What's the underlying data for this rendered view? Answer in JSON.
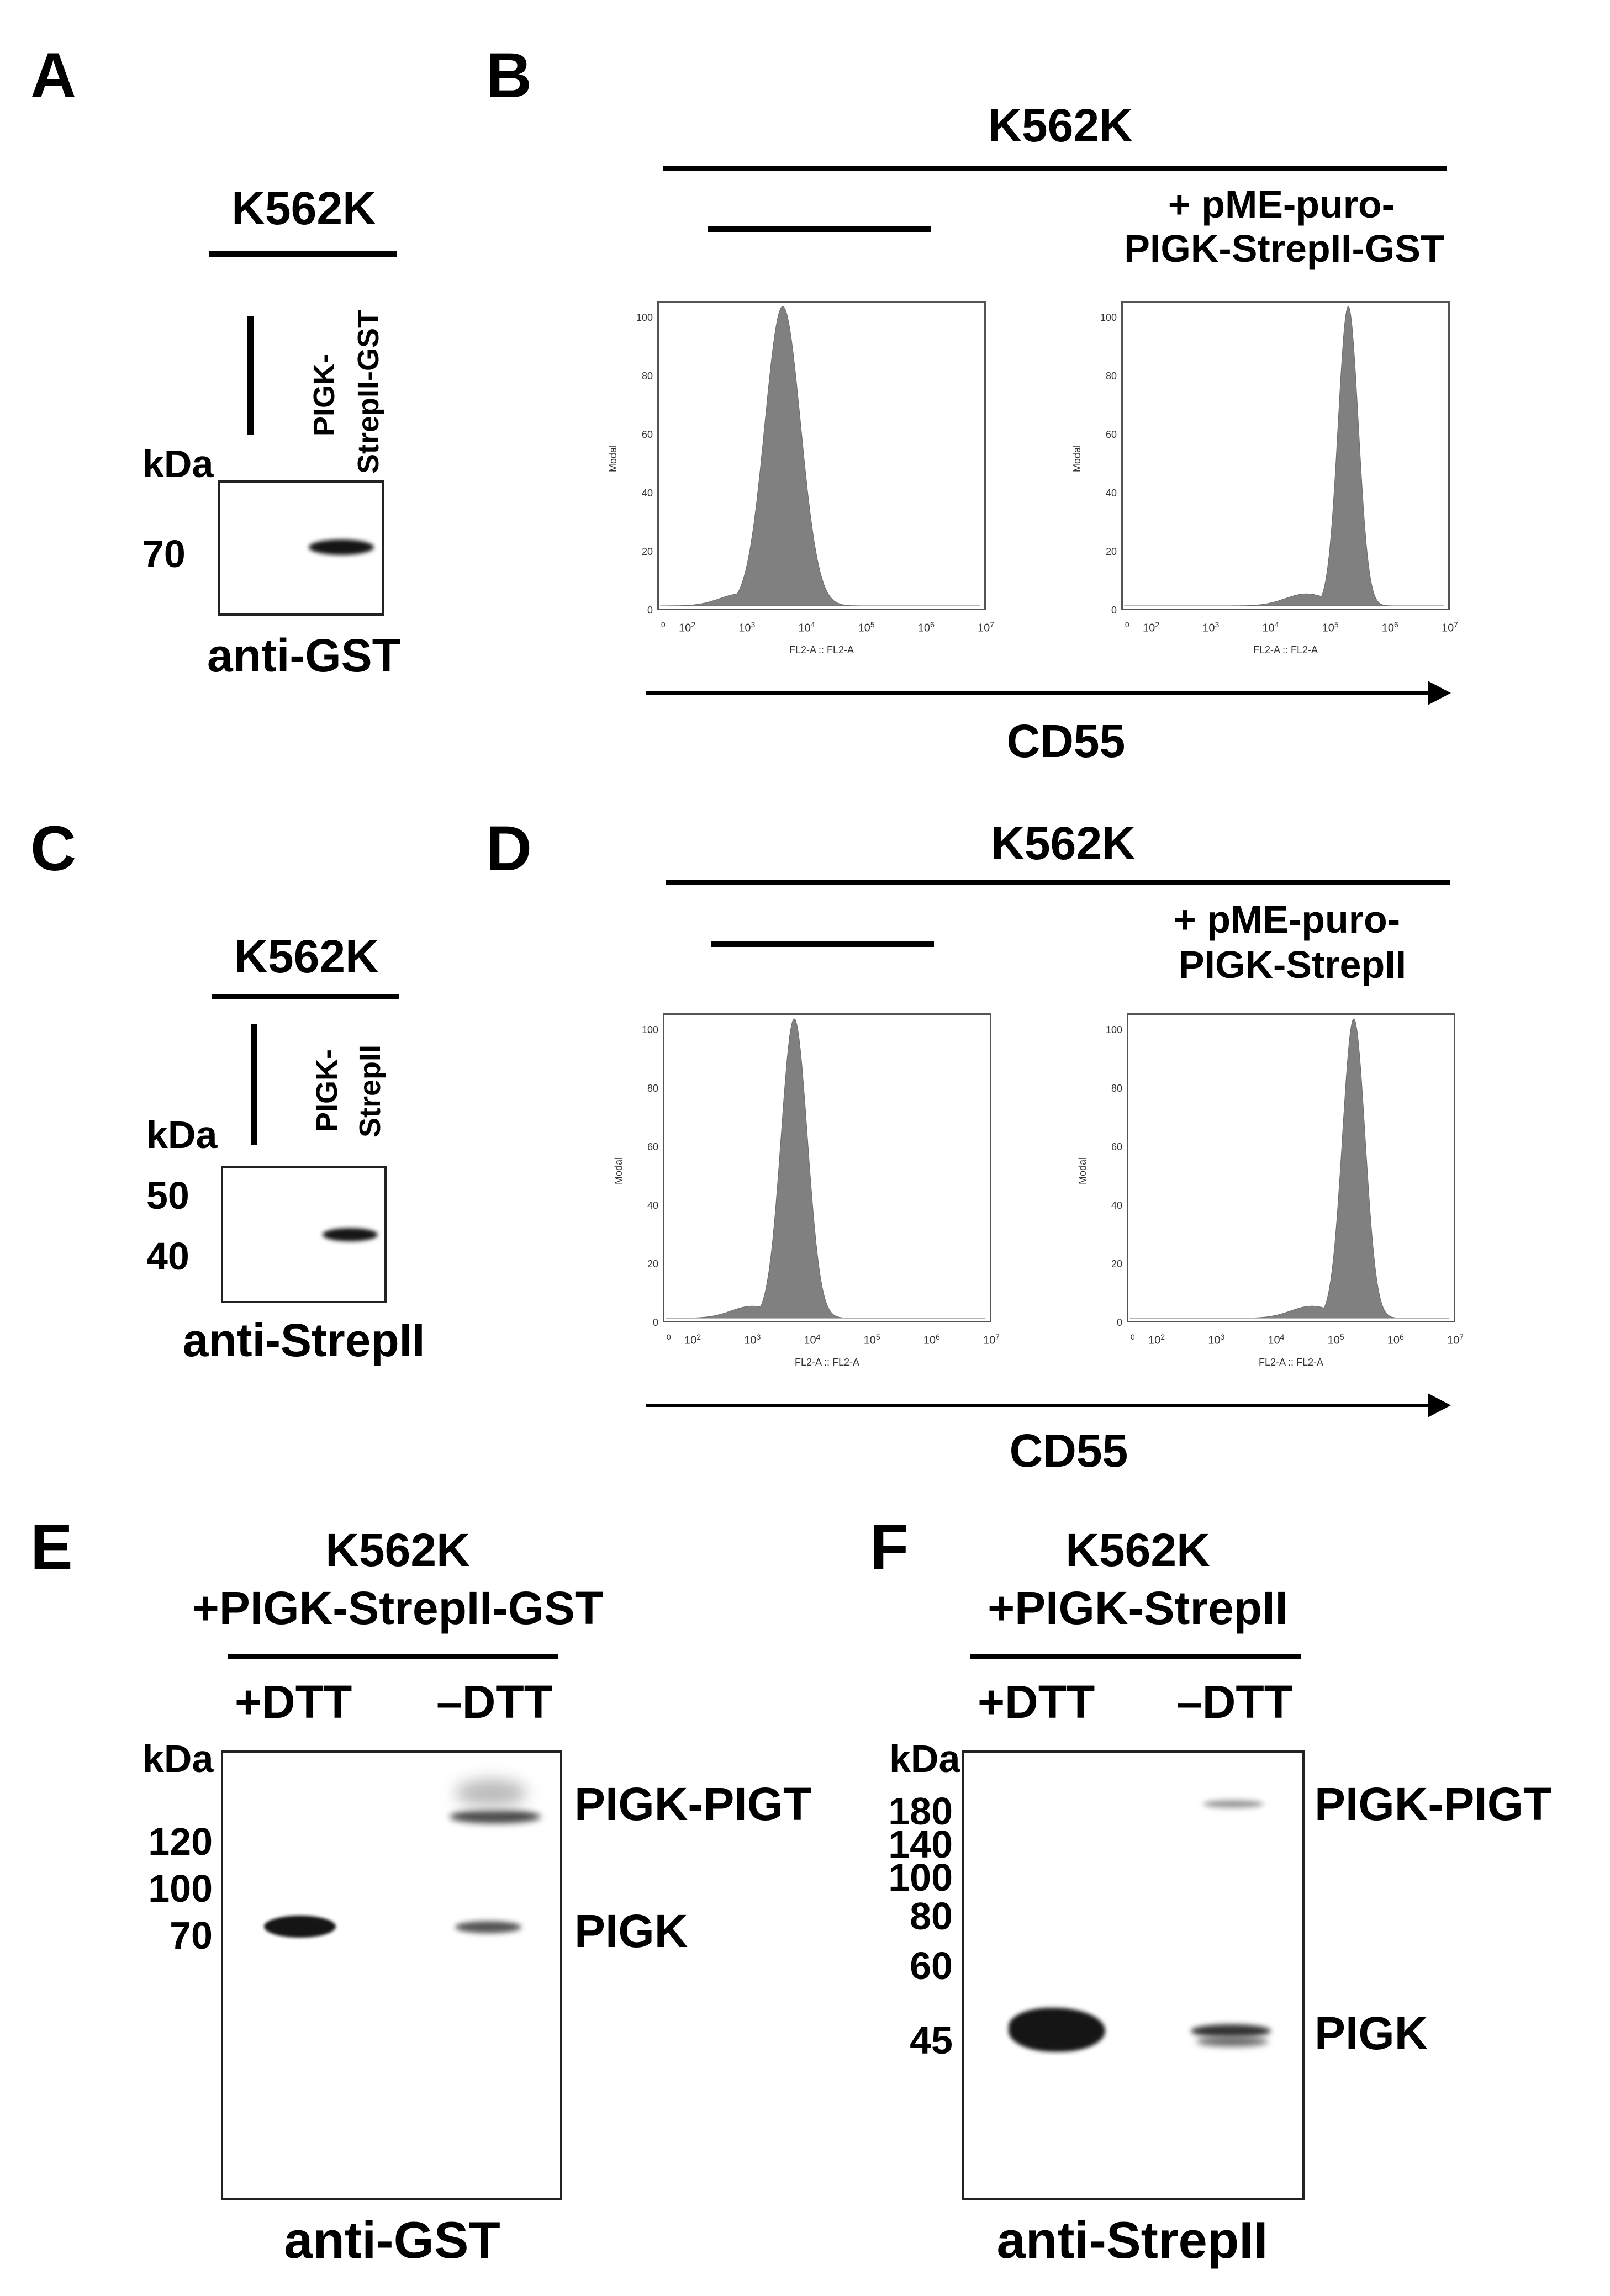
{
  "panelA": {
    "letter": "A",
    "header": "K562K",
    "lane1": "PIGK-",
    "lane2": "StrepII-GST",
    "kda": "kDa",
    "mw": [
      "70"
    ],
    "antibody": "anti-GST"
  },
  "panelB": {
    "letter": "B",
    "header": "K562K",
    "right_condition_1": "+ pME-puro-",
    "right_condition_2": "PIGK-StrepII-GST",
    "y_label": "Modal",
    "x_label": "FL2-A :: FL2-A",
    "axis_title": "CD55",
    "y_ticks": [
      "100",
      "80",
      "60",
      "40",
      "20",
      "0"
    ],
    "x_ticks": [
      "2",
      "3",
      "4",
      "5",
      "6",
      "7"
    ],
    "x_base": "10",
    "x_first": "0"
  },
  "panelC": {
    "letter": "C",
    "header": "K562K",
    "lane1": "PIGK-",
    "lane2": "StrepII",
    "kda": "kDa",
    "mw": [
      "50",
      "40"
    ],
    "antibody": "anti-StrepII"
  },
  "panelD": {
    "letter": "D",
    "header": "K562K",
    "right_condition_1": "+ pME-puro-",
    "right_condition_2": "PIGK-StrepII",
    "y_label": "Modal",
    "x_label": "FL2-A :: FL2-A",
    "axis_title": "CD55",
    "y_ticks": [
      "100",
      "80",
      "60",
      "40",
      "20",
      "0"
    ],
    "x_ticks": [
      "2",
      "3",
      "4",
      "5",
      "6",
      "7"
    ],
    "x_base": "10",
    "x_first": "0"
  },
  "panelE": {
    "letter": "E",
    "header_1": "K562K",
    "header_2": "+PIGK-StrepII-GST",
    "lane_left": "+DTT",
    "lane_right": "–DTT",
    "kda": "kDa",
    "mw": [
      "120",
      "100",
      "70"
    ],
    "band_upper": "PIGK-PIGT",
    "band_lower": "PIGK",
    "antibody": "anti-GST"
  },
  "panelF": {
    "letter": "F",
    "header_1": "K562K",
    "header_2": "+PIGK-StrepII",
    "lane_left": "+DTT",
    "lane_right": "–DTT",
    "kda": "kDa",
    "mw": [
      "180",
      "140",
      "100",
      "80",
      "60",
      "45"
    ],
    "band_upper": "PIGK-PIGT",
    "band_lower": "PIGK",
    "antibody": "anti-StrepII"
  },
  "histograms": {
    "B_left": {
      "peak_log10": 3.6,
      "spread": 0.3,
      "color": "#808080"
    },
    "B_right": {
      "peak_log10": 5.3,
      "spread": 0.17,
      "color": "#808080"
    },
    "D_left": {
      "peak_log10": 3.7,
      "spread": 0.22,
      "color": "#808080"
    },
    "D_right": {
      "peak_log10": 5.3,
      "spread": 0.19,
      "color": "#808080"
    }
  }
}
